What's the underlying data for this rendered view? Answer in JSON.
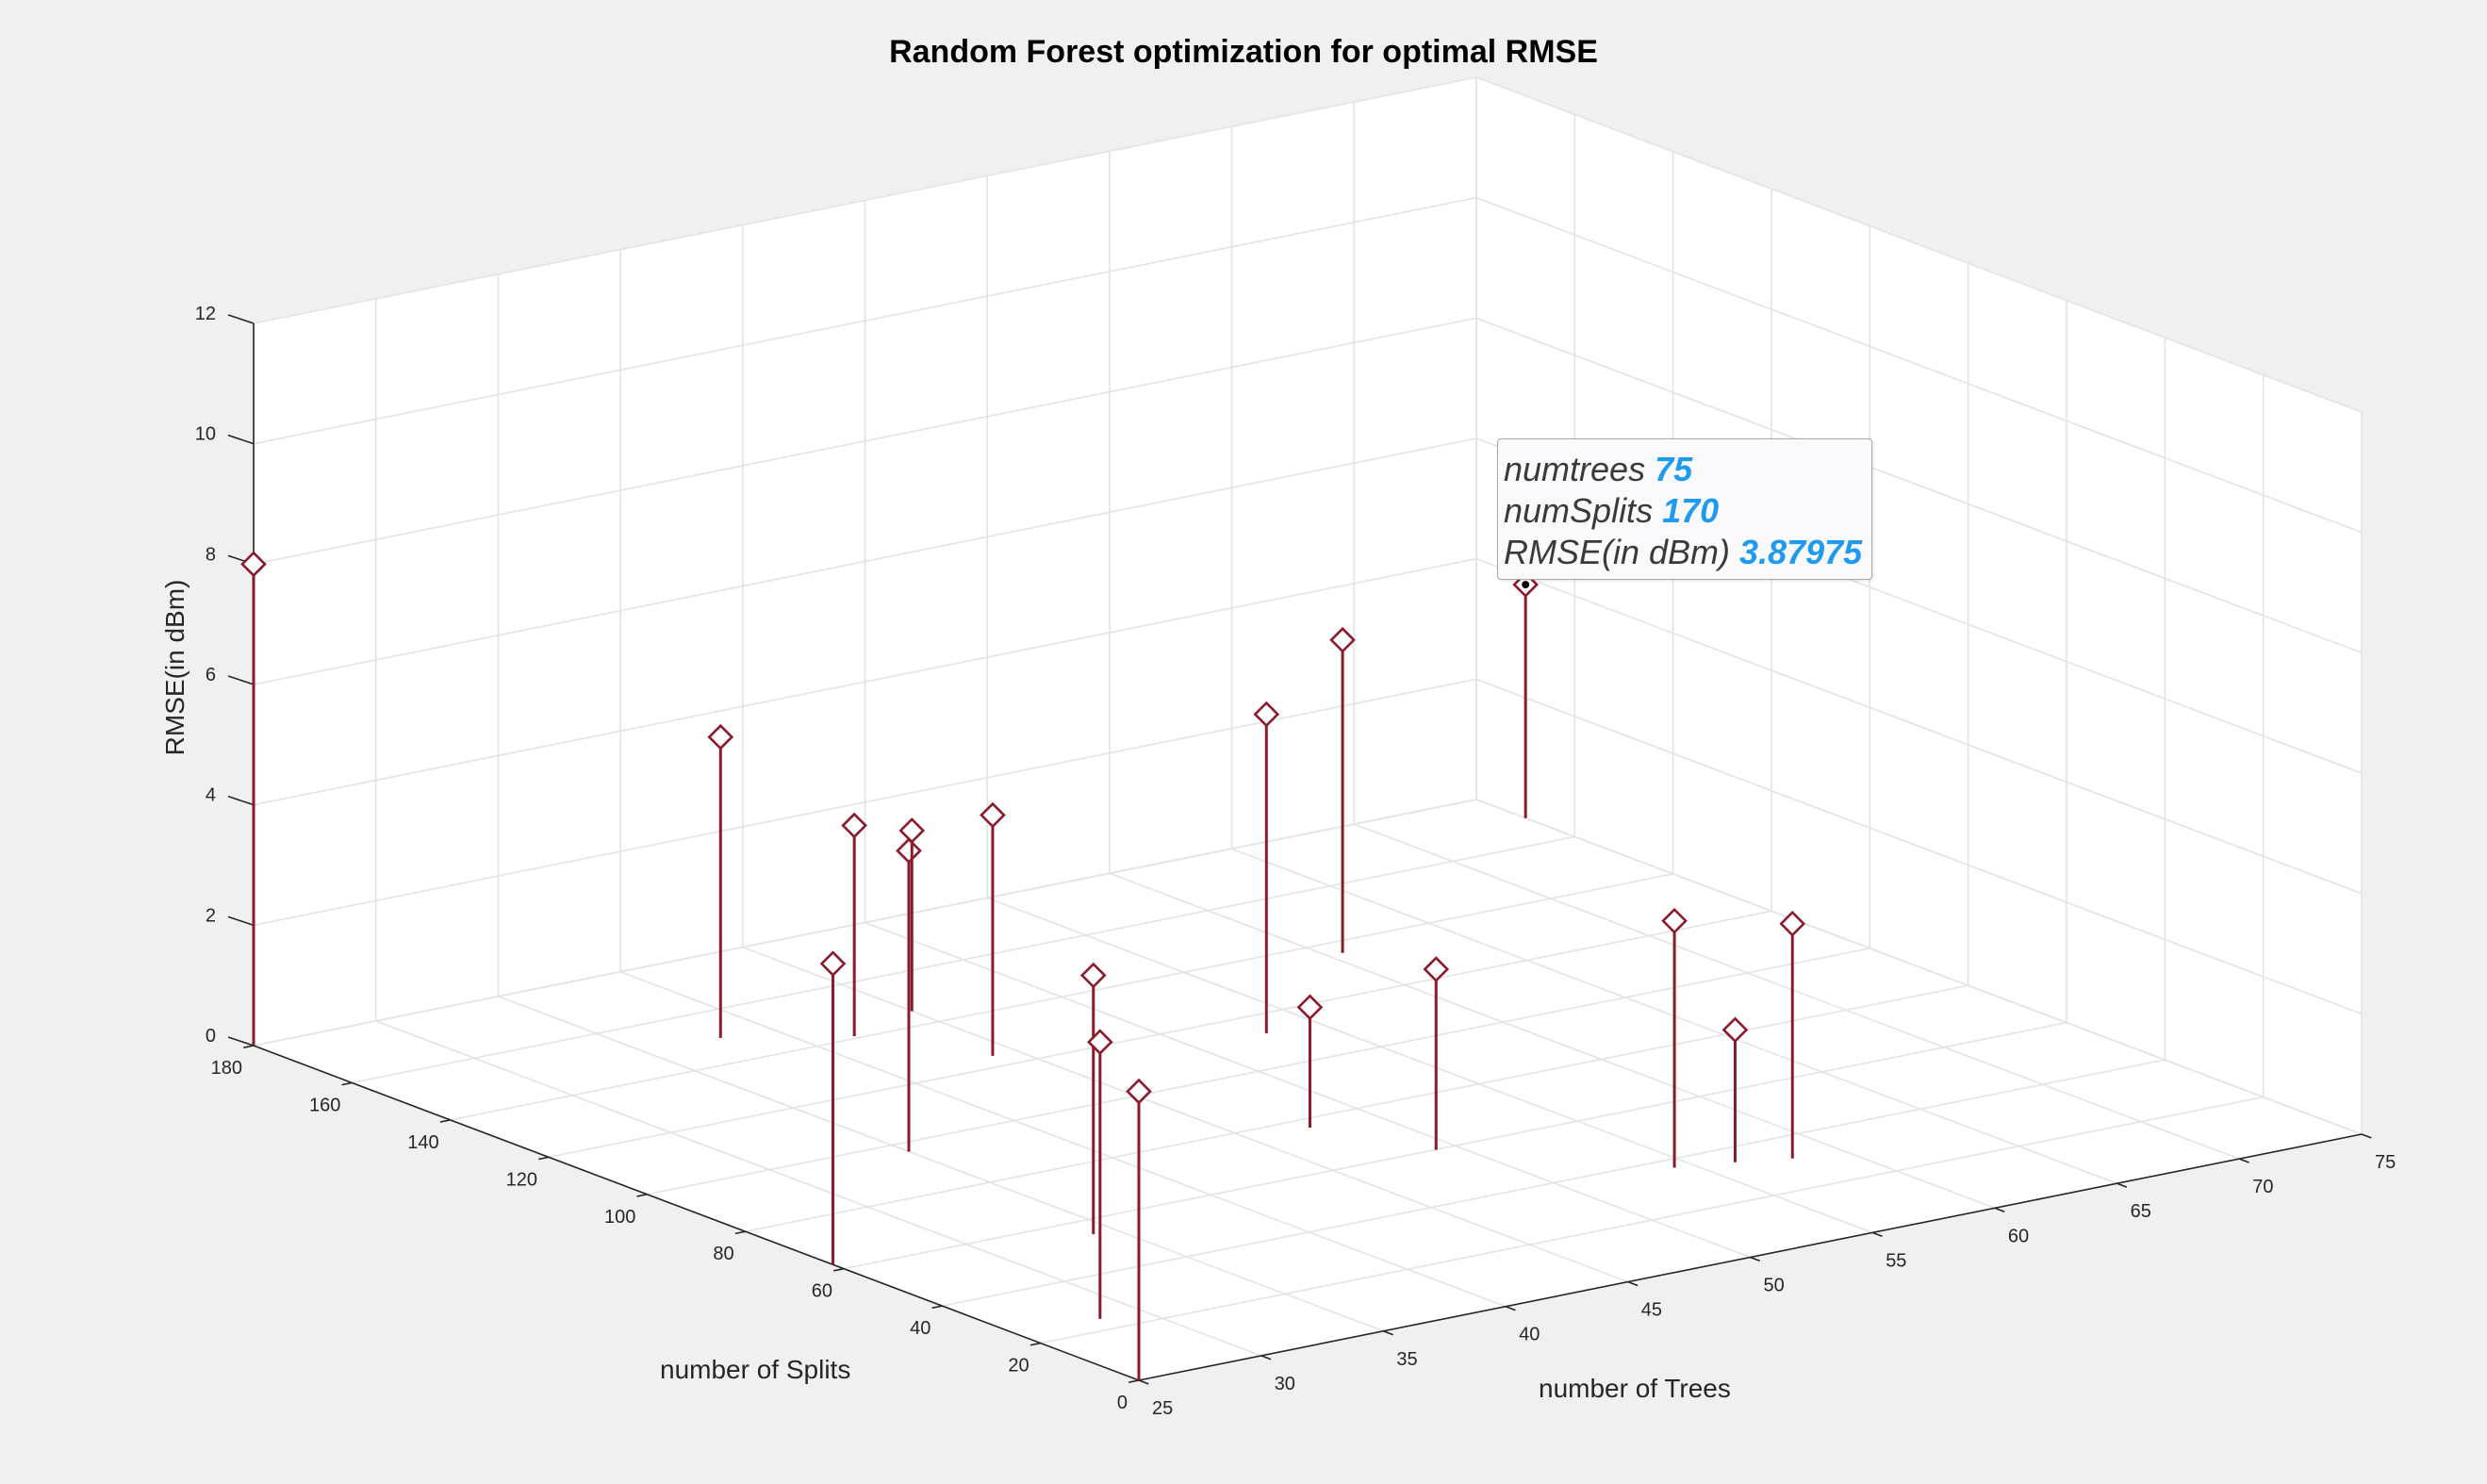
{
  "chart_data": {
    "type": "scatter",
    "plot_style": "3d-stem",
    "title": "Random Forest optimization for optimal RMSE",
    "xlabel": "number of Trees",
    "ylabel": "number of Splits",
    "zlabel": "RMSE(in dBm)",
    "xlim": [
      25,
      75
    ],
    "ylim": [
      0,
      180
    ],
    "zlim": [
      0,
      12
    ],
    "xticks": [
      25,
      30,
      35,
      40,
      45,
      50,
      55,
      60,
      65,
      70,
      75
    ],
    "yticks": [
      0,
      20,
      40,
      60,
      80,
      100,
      120,
      140,
      160,
      180
    ],
    "zticks": [
      0,
      2,
      4,
      6,
      8,
      10,
      12
    ],
    "grid": true,
    "series": [
      {
        "color": "#8b1a2b",
        "marker": "diamond",
        "x": [
          25,
          35,
          38,
          44,
          45,
          56.3,
          25,
          49.2,
          47.4,
          54.3,
          34.1,
          25,
          28.3,
          52.9,
          41.7,
          58.1,
          60.6,
          75
        ],
        "y": [
          180,
          96.5,
          149.7,
          124.2,
          145.6,
          34.4,
          0,
          59.9,
          76.6,
          36.8,
          54.5,
          62.2,
          24.3,
          112.8,
          140.9,
          31.7,
          135.6,
          170
        ],
        "z": [
          8.0,
          5.0,
          5.0,
          4.0,
          3.0,
          2.2,
          4.8,
          3.0,
          2.0,
          4.1,
          4.3,
          5.0,
          4.6,
          5.3,
          3.5,
          3.9,
          5.2,
          3.87975
        ]
      }
    ]
  },
  "datatip": {
    "x_label": "numtrees",
    "x_value": "75",
    "y_label": "numSplits",
    "y_value": "170",
    "z_label": "RMSE(in dBm)",
    "z_value": "3.87975"
  }
}
